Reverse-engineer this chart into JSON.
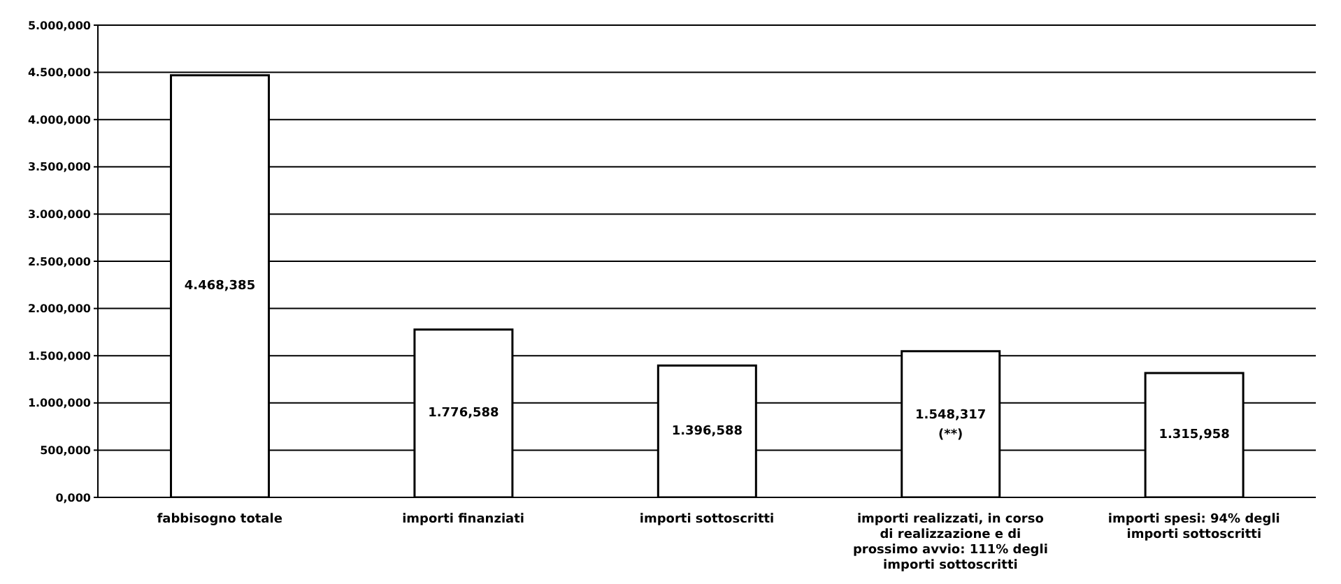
{
  "chart_data": {
    "type": "bar",
    "categories": [
      "fabbisogno totale",
      "importi finanziati",
      "importi sottoscritti",
      "importi realizzati, in corso di realizzazione e di prossimo avvio: 111% degli importi sottoscritti",
      "importi spesi: 94% degli importi sottoscritti"
    ],
    "values": [
      4468.385,
      1776.588,
      1396.588,
      1548.317,
      1315.958
    ],
    "value_labels": [
      "4.468,385",
      "1.776,588",
      "1.396,588",
      "1.548,317 (**)",
      "1.315,958"
    ],
    "color": "#ffffff",
    "ylim": [
      0,
      5000
    ],
    "yticks": [
      {
        "value": 0,
        "label": "0,000"
      },
      {
        "value": 500,
        "label": "500,000"
      },
      {
        "value": 1000,
        "label": "1.000,000"
      },
      {
        "value": 1500,
        "label": "1.500,000"
      },
      {
        "value": 2000,
        "label": "2.000,000"
      },
      {
        "value": 2500,
        "label": "2.500,000"
      },
      {
        "value": 3000,
        "label": "3.000,000"
      },
      {
        "value": 3500,
        "label": "3.500,000"
      },
      {
        "value": 4000,
        "label": "4.000,000"
      },
      {
        "value": 4500,
        "label": "4.500,000"
      },
      {
        "value": 5000,
        "label": "5.000,000"
      }
    ],
    "grid": "y"
  }
}
